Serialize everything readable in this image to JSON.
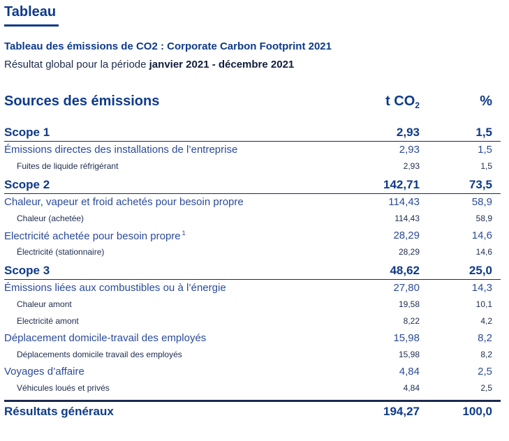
{
  "section_title": "Tableau",
  "heading": "Tableau des émissions de CO2 : Corporate Carbon Footprint 2021",
  "subheading_prefix": "Résultat global pour la période",
  "subheading_period": "janvier 2021 - décembre 2021",
  "table": {
    "header": {
      "source": "Sources des émissions",
      "tco2_main": "t CO",
      "tco2_sub": "2",
      "pct": "%"
    },
    "scope1": {
      "label": "Scope 1",
      "t": "2,93",
      "p": "1,5",
      "cats": [
        {
          "label": "Émissions directes des installations de l’entreprise",
          "t": "2,93",
          "p": "1,5",
          "subs": [
            {
              "label": "Fuites de liquide réfrigérant",
              "t": "2,93",
              "p": "1,5"
            }
          ]
        }
      ]
    },
    "scope2": {
      "label": "Scope 2",
      "t": "142,71",
      "p": "73,5",
      "cats": [
        {
          "label": "Chaleur, vapeur et froid achetés pour besoin propre",
          "t": "114,43",
          "p": "58,9",
          "subs": [
            {
              "label": "Chaleur (achetée)",
              "t": "114,43",
              "p": "58,9"
            }
          ]
        },
        {
          "label": "Electricité achetée pour besoin propre",
          "footnote": "1",
          "t": "28,29",
          "p": "14,6",
          "subs": [
            {
              "label": "Électricité (stationnaire)",
              "t": "28,29",
              "p": "14,6"
            }
          ]
        }
      ]
    },
    "scope3": {
      "label": "Scope 3",
      "t": "48,62",
      "p": "25,0",
      "cats": [
        {
          "label": "Émissions liées aux combustibles ou à l’énergie",
          "t": "27,80",
          "p": "14,3",
          "subs": [
            {
              "label": "Chaleur amont",
              "t": "19,58",
              "p": "10,1"
            },
            {
              "label": "Electricité amont",
              "t": "8,22",
              "p": "4,2"
            }
          ]
        },
        {
          "label": "Déplacement domicile-travail des employés",
          "t": "15,98",
          "p": "8,2",
          "subs": [
            {
              "label": "Déplacements domicile travail des employés",
              "t": "15,98",
              "p": "8,2"
            }
          ]
        },
        {
          "label": "Voyages d’affaire",
          "t": "4,84",
          "p": "2,5",
          "subs": [
            {
              "label": "Véhicules loués et privés",
              "t": "4,84",
              "p": "2,5"
            }
          ]
        }
      ]
    },
    "total": {
      "label": "Résultats généraux",
      "t": "194,27",
      "p": "100,0"
    }
  }
}
